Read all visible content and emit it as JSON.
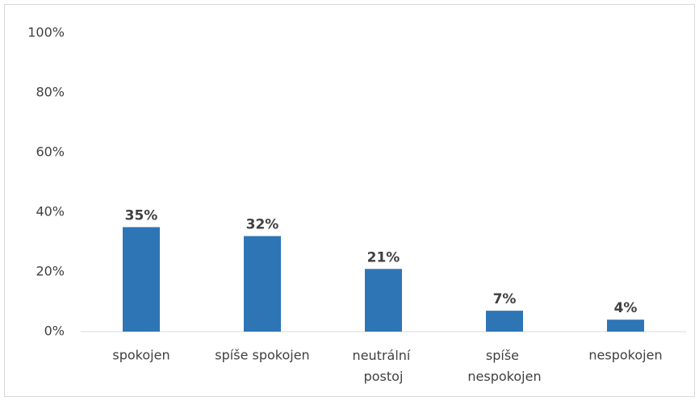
{
  "chart_data": {
    "type": "bar",
    "categories": [
      "spokojen",
      "spíše spokojen",
      "neutrální postoj",
      "spíše nespokojen",
      "nespokojen"
    ],
    "values": [
      35,
      32,
      21,
      7,
      4
    ],
    "value_labels": [
      "35%",
      "32%",
      "21%",
      "7%",
      "4%"
    ],
    "color": "#2e75b6",
    "ylim": [
      0,
      100
    ],
    "yticks": [
      {
        "value": 0,
        "label": "0%"
      },
      {
        "value": 20,
        "label": "20%"
      },
      {
        "value": 40,
        "label": "40%"
      },
      {
        "value": 60,
        "label": "60%"
      },
      {
        "value": 80,
        "label": "80%"
      },
      {
        "value": 100,
        "label": "100%"
      }
    ],
    "grid": false
  }
}
